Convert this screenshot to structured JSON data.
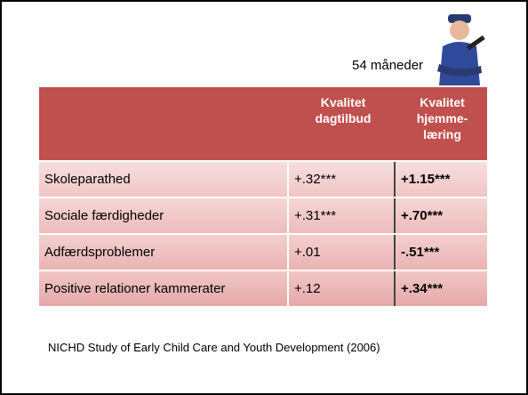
{
  "label": "54 måneder",
  "table": {
    "columns": [
      [
        "Kvalitet",
        "dagtilbud"
      ],
      [
        "Kvalitet",
        "hjemme-",
        "læring"
      ]
    ],
    "rows": [
      [
        "Skoleparathed",
        "+.32***",
        "+1.15***"
      ],
      [
        "Sociale færdigheder",
        "+.31***",
        "+.70***"
      ],
      [
        "Adfærdsproblemer",
        "+.01",
        "-.51***"
      ],
      [
        "Positive relationer kammerater",
        "+.12",
        "+.34***"
      ]
    ]
  },
  "footer": "NICHD Study of Early Child Care and Youth Development (2006)"
}
